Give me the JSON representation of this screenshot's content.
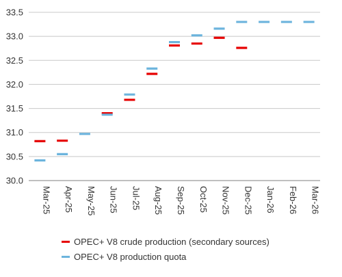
{
  "chart_data": {
    "type": "scatter",
    "marker": "horizontal-dash",
    "categories": [
      "Mar-25",
      "Apr-25",
      "May-25",
      "Jun-25",
      "Jul-25",
      "Aug-25",
      "Sep-25",
      "Oct-25",
      "Nov-25",
      "Dec-25",
      "Jan-26",
      "Feb-26",
      "Mar-26"
    ],
    "series": [
      {
        "name": "OPEC+ V8 crude production (secondary sources)",
        "color": "#e60000",
        "values": [
          30.82,
          30.83,
          null,
          31.4,
          31.68,
          32.22,
          32.81,
          32.85,
          32.97,
          32.76,
          null,
          null,
          null
        ]
      },
      {
        "name": "OPEC+ V8 production quota",
        "color": "#6cb4dd",
        "values": [
          30.42,
          30.55,
          30.97,
          31.37,
          31.79,
          32.33,
          32.88,
          33.02,
          33.16,
          33.3,
          33.3,
          33.3,
          33.3
        ]
      }
    ],
    "ylim": [
      30.0,
      33.5
    ],
    "yticks": [
      "30.0",
      "30.5",
      "31.0",
      "31.5",
      "32.0",
      "32.5",
      "33.0",
      "33.5"
    ],
    "ytick_values": [
      30.0,
      30.5,
      31.0,
      31.5,
      32.0,
      32.5,
      33.0,
      33.5
    ],
    "grid": "horizontal",
    "legend_position": "bottom",
    "title": "",
    "xlabel": "",
    "ylabel": ""
  }
}
